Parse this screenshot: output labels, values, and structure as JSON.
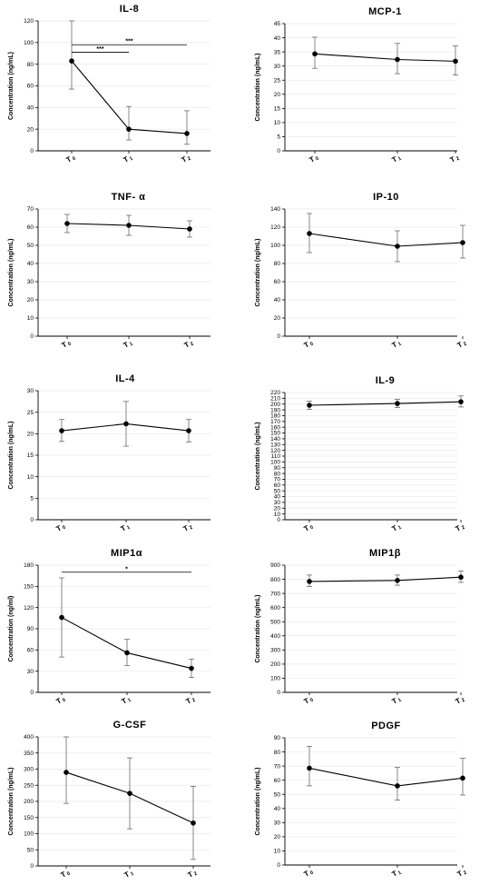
{
  "chart_data": [
    {
      "type": "line",
      "title": "IL-8",
      "ylabel": "Concentration (ng/mL)",
      "ylim": [
        0,
        120
      ],
      "yticks": [
        0,
        20,
        40,
        60,
        80,
        100,
        120
      ],
      "categories": [
        {
          "main": "T",
          "sub": "0"
        },
        {
          "main": "T",
          "sub": "1"
        },
        {
          "main": "T",
          "sub": "2"
        }
      ],
      "values": [
        83,
        20,
        16
      ],
      "err_upper": [
        120,
        41,
        37
      ],
      "err_lower": [
        57,
        10,
        6
      ],
      "annotations": [
        {
          "from": 0,
          "to": 1,
          "y": 91,
          "text": "***"
        },
        {
          "from": 0,
          "to": 2,
          "y": 98,
          "text": "***"
        }
      ]
    },
    {
      "type": "line",
      "title": "MCP-1",
      "ylabel": "Concentration (ng/mL)",
      "ylim": [
        0,
        45
      ],
      "yticks": [
        0,
        5,
        10,
        15,
        20,
        25,
        30,
        35,
        40,
        45
      ],
      "categories": [
        {
          "main": "T",
          "sub": "0"
        },
        {
          "main": "T",
          "sub": "1"
        },
        {
          "main": "T",
          "sub": "2"
        }
      ],
      "values": [
        34.3,
        32.3,
        31.7
      ],
      "err_upper": [
        40.2,
        38,
        37.1
      ],
      "err_lower": [
        29.2,
        27.3,
        26.8
      ],
      "annotations": []
    },
    {
      "type": "line",
      "title": "TNF- α",
      "ylabel": "Concentration (ng/mL)",
      "ylim": [
        0,
        70
      ],
      "yticks": [
        0,
        10,
        20,
        30,
        40,
        50,
        60,
        70
      ],
      "categories": [
        {
          "main": "T",
          "sub": "0"
        },
        {
          "main": "T",
          "sub": "1"
        },
        {
          "main": "T",
          "sub": "2"
        }
      ],
      "values": [
        62,
        61,
        59
      ],
      "err_upper": [
        67,
        66.5,
        63.5
      ],
      "err_lower": [
        57,
        55.5,
        54.5
      ],
      "annotations": []
    },
    {
      "type": "line",
      "title": "IP-10",
      "ylabel": "Concentration (ng/mL)",
      "ylim": [
        0,
        140
      ],
      "yticks": [
        0,
        20,
        40,
        60,
        80,
        100,
        120,
        140
      ],
      "categories": [
        {
          "main": "T",
          "sub": "0"
        },
        {
          "main": "T",
          "sub": "1"
        },
        {
          "main": "T",
          "sub": "2"
        }
      ],
      "values": [
        113,
        99,
        103
      ],
      "err_upper": [
        135,
        116,
        122
      ],
      "err_lower": [
        92,
        82,
        86
      ],
      "annotations": []
    },
    {
      "type": "line",
      "title": "IL-4",
      "ylabel": "Concentration (ng/mL)",
      "ylim": [
        0,
        30
      ],
      "yticks": [
        0,
        5,
        10,
        15,
        20,
        25,
        30
      ],
      "categories": [
        {
          "main": "T",
          "sub": "0"
        },
        {
          "main": "T",
          "sub": "1"
        },
        {
          "main": "T",
          "sub": "2"
        }
      ],
      "values": [
        20.7,
        22.3,
        20.7
      ],
      "err_upper": [
        23.3,
        27.5,
        23.3
      ],
      "err_lower": [
        18.2,
        17.1,
        18.1
      ],
      "annotations": []
    },
    {
      "type": "line",
      "title": "IL-9",
      "ylabel": "Concentration (ng/mL)",
      "ylim": [
        0,
        220
      ],
      "yticks": [
        0,
        10,
        20,
        30,
        40,
        50,
        60,
        70,
        80,
        90,
        100,
        110,
        120,
        130,
        140,
        150,
        160,
        170,
        180,
        190,
        200,
        210,
        220
      ],
      "categories": [
        {
          "main": "T",
          "sub": "0"
        },
        {
          "main": "T",
          "sub": "1"
        },
        {
          "main": "T",
          "sub": "2"
        }
      ],
      "values": [
        198,
        201,
        204
      ],
      "err_upper": [
        205,
        208,
        214
      ],
      "err_lower": [
        191,
        194,
        195
      ],
      "annotations": []
    },
    {
      "type": "line",
      "title": "MIP1α",
      "ylabel": "Concentration (ng/ml)",
      "ylim": [
        0,
        180
      ],
      "yticks": [
        0,
        30,
        60,
        90,
        120,
        150,
        180
      ],
      "categories": [
        {
          "main": "T",
          "sub": "0"
        },
        {
          "main": "T",
          "sub": "1"
        },
        {
          "main": "T",
          "sub": "2"
        }
      ],
      "values": [
        106,
        56,
        34
      ],
      "err_upper": [
        162,
        75,
        47
      ],
      "err_lower": [
        50,
        38,
        21
      ],
      "annotations": [
        {
          "from": 0,
          "to": 2,
          "y": 170,
          "text": "*"
        }
      ]
    },
    {
      "type": "line",
      "title": "MIP1β",
      "ylabel": "Concentration (ng/mL)",
      "ylim": [
        0,
        900
      ],
      "yticks": [
        0,
        100,
        200,
        300,
        400,
        500,
        600,
        700,
        800,
        900
      ],
      "categories": [
        {
          "main": "T",
          "sub": "0"
        },
        {
          "main": "T",
          "sub": "1"
        },
        {
          "main": "T",
          "sub": "2"
        }
      ],
      "values": [
        785,
        792,
        815
      ],
      "err_upper": [
        830,
        830,
        858
      ],
      "err_lower": [
        748,
        758,
        778
      ],
      "annotations": []
    },
    {
      "type": "line",
      "title": "G-CSF",
      "ylabel": "Concentration (ng/mL)",
      "ylim": [
        0,
        400
      ],
      "yticks": [
        0,
        50,
        100,
        150,
        200,
        250,
        300,
        350,
        400
      ],
      "categories": [
        {
          "main": "T",
          "sub": "0"
        },
        {
          "main": "T",
          "sub": "1"
        },
        {
          "main": "T",
          "sub": "2"
        }
      ],
      "values": [
        290,
        225,
        133
      ],
      "err_upper": [
        400,
        335,
        247
      ],
      "err_lower": [
        194,
        115,
        20
      ],
      "annotations": []
    },
    {
      "type": "line",
      "title": "PDGF",
      "ylabel": "Concentration (ng/mL)",
      "ylim": [
        0,
        90
      ],
      "yticks": [
        0,
        10,
        20,
        30,
        40,
        50,
        60,
        70,
        80,
        90
      ],
      "categories": [
        {
          "main": "T",
          "sub": "0"
        },
        {
          "main": "T",
          "sub": "1"
        },
        {
          "main": "T",
          "sub": "2"
        }
      ],
      "values": [
        68.5,
        56,
        61.5
      ],
      "err_upper": [
        84,
        69,
        75.5
      ],
      "err_lower": [
        56,
        46,
        49.5
      ],
      "annotations": []
    }
  ]
}
